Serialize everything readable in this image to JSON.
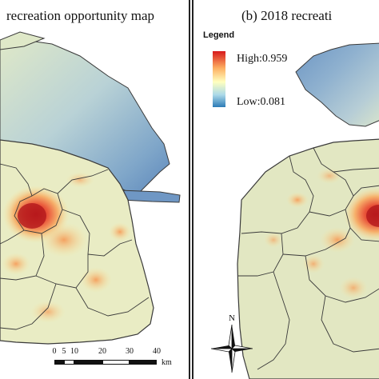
{
  "panel_a": {
    "title": "recreation opportunity map",
    "scale": {
      "ticks": [
        "0",
        "5",
        "10",
        "20",
        "30",
        "40"
      ],
      "unit": "km"
    }
  },
  "panel_b": {
    "title": "(b) 2018 recreati",
    "legend": {
      "heading": "Legend",
      "high_label": "High:0.959",
      "low_label": "Low:0.081"
    },
    "north_label": "N"
  },
  "colors": {
    "high": "#d7191c",
    "mid": "#ffffbf",
    "low": "#2c7bb6",
    "land": "#e8ecc4",
    "boundary": "#3a3a3a"
  }
}
